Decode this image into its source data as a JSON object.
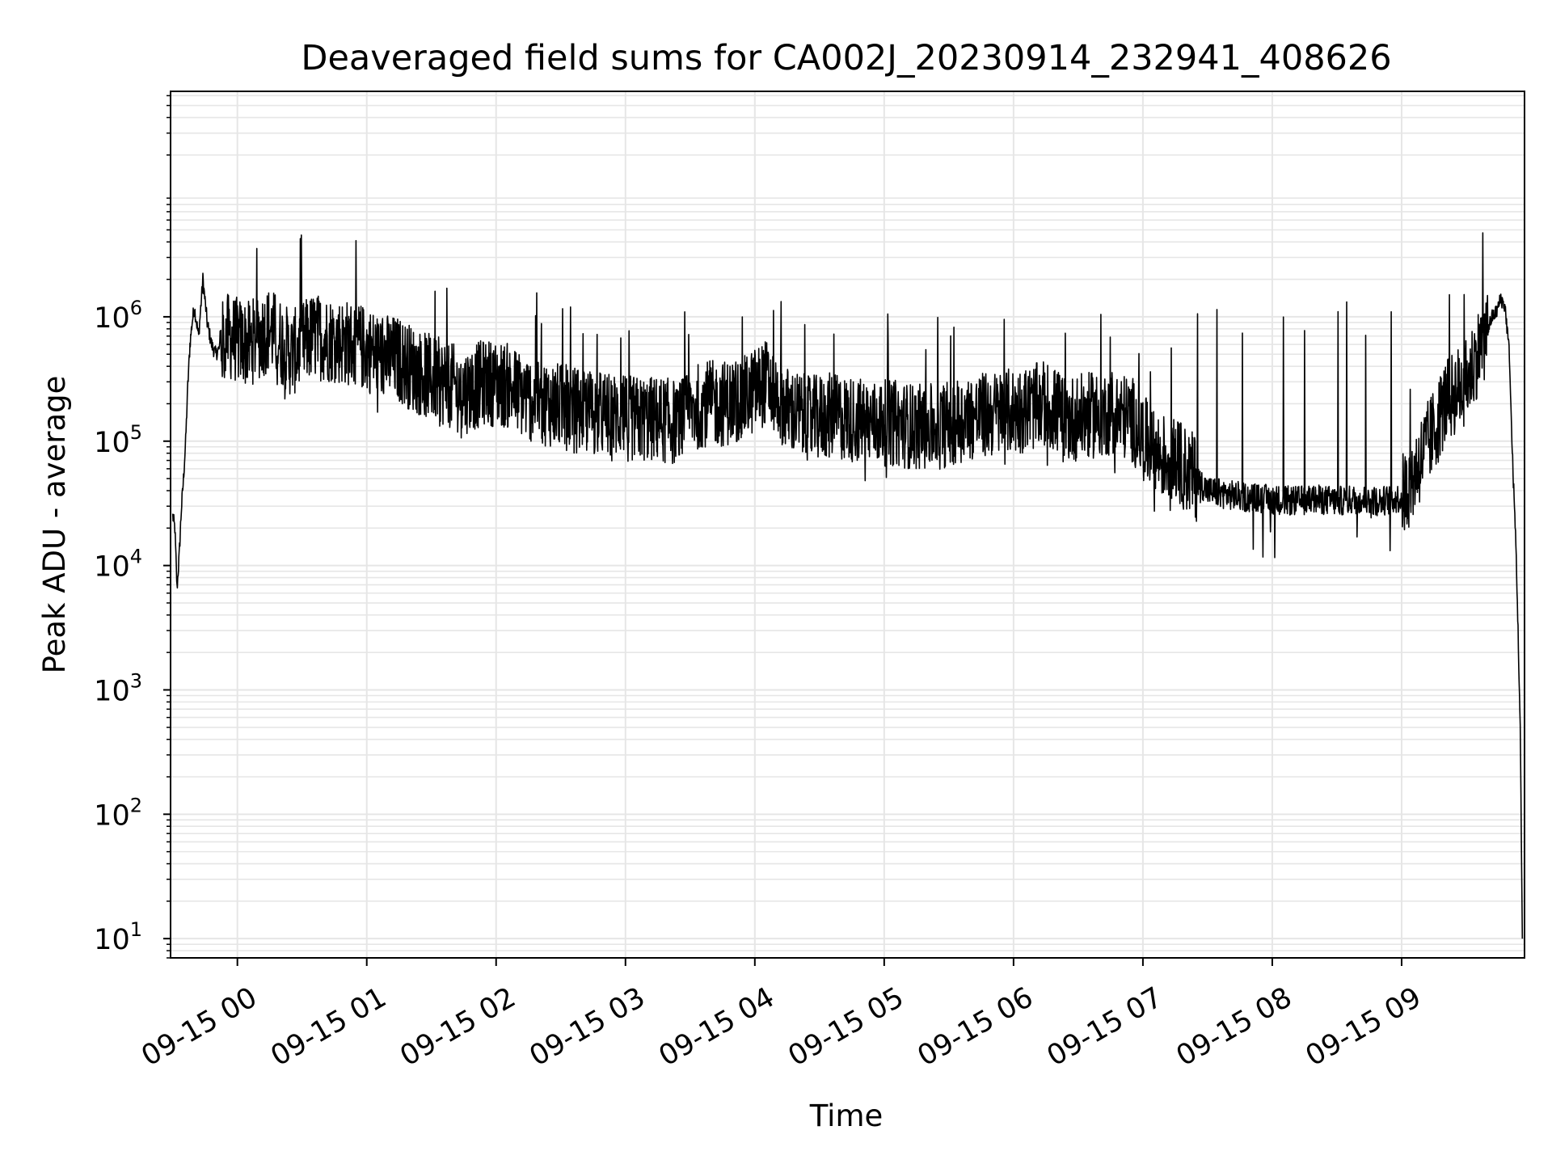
{
  "chart_data": {
    "type": "line",
    "title": "Deaveraged field sums for CA002J_20230914_232941_408626",
    "xlabel": "Time",
    "ylabel": "Peak ADU - average",
    "yscale": "log",
    "grid": true,
    "line_color": "#000000",
    "grid_color": "#e6e6e6",
    "xlim": [
      "2023-09-14 23:29",
      "2023-09-15 09:57"
    ],
    "ylim": [
      7,
      65000000
    ],
    "x_ticks": [
      {
        "value": "2023-09-15 00:00",
        "label": "09-15 00"
      },
      {
        "value": "2023-09-15 01:00",
        "label": "09-15 01"
      },
      {
        "value": "2023-09-15 02:00",
        "label": "09-15 02"
      },
      {
        "value": "2023-09-15 03:00",
        "label": "09-15 03"
      },
      {
        "value": "2023-09-15 04:00",
        "label": "09-15 04"
      },
      {
        "value": "2023-09-15 05:00",
        "label": "09-15 05"
      },
      {
        "value": "2023-09-15 06:00",
        "label": "09-15 06"
      },
      {
        "value": "2023-09-15 07:00",
        "label": "09-15 07"
      },
      {
        "value": "2023-09-15 08:00",
        "label": "09-15 08"
      },
      {
        "value": "2023-09-15 09:00",
        "label": "09-15 09"
      }
    ],
    "y_ticks": [
      {
        "value": 10,
        "base": "10",
        "exp": "1"
      },
      {
        "value": 100,
        "base": "10",
        "exp": "2"
      },
      {
        "value": 1000,
        "base": "10",
        "exp": "3"
      },
      {
        "value": 10000,
        "base": "10",
        "exp": "4"
      },
      {
        "value": 100000,
        "base": "10",
        "exp": "5"
      },
      {
        "value": 1000000,
        "base": "10",
        "exp": "6"
      }
    ],
    "series": [
      {
        "x": [
          "2023-09-14 23:30",
          "2023-09-14 23:31",
          "2023-09-14 23:32",
          "2023-09-14 23:33",
          "2023-09-14 23:34",
          "2023-09-14 23:35",
          "2023-09-14 23:36",
          "2023-09-14 23:37",
          "2023-09-14 23:38",
          "2023-09-14 23:39",
          "2023-09-14 23:40",
          "2023-09-14 23:42",
          "2023-09-14 23:44",
          "2023-09-14 23:46",
          "2023-09-14 23:48",
          "2023-09-14 23:50",
          "2023-09-14 23:55",
          "2023-09-15 00:05",
          "2023-09-15 00:15",
          "2023-09-15 00:25",
          "2023-09-15 00:35",
          "2023-09-15 00:45",
          "2023-09-15 00:55",
          "2023-09-15 01:05",
          "2023-09-15 01:15",
          "2023-09-15 01:25",
          "2023-09-15 01:35",
          "2023-09-15 01:45",
          "2023-09-15 01:55",
          "2023-09-15 02:05",
          "2023-09-15 02:15",
          "2023-09-15 02:25",
          "2023-09-15 02:35",
          "2023-09-15 02:45",
          "2023-09-15 02:55",
          "2023-09-15 03:05",
          "2023-09-15 03:15",
          "2023-09-15 03:25",
          "2023-09-15 03:35",
          "2023-09-15 03:45",
          "2023-09-15 03:55",
          "2023-09-15 04:05",
          "2023-09-15 04:15",
          "2023-09-15 04:25",
          "2023-09-15 04:35",
          "2023-09-15 04:45",
          "2023-09-15 04:55",
          "2023-09-15 05:05",
          "2023-09-15 05:15",
          "2023-09-15 05:25",
          "2023-09-15 05:35",
          "2023-09-15 05:45",
          "2023-09-15 05:55",
          "2023-09-15 06:05",
          "2023-09-15 06:15",
          "2023-09-15 06:25",
          "2023-09-15 06:35",
          "2023-09-15 06:45",
          "2023-09-15 06:55",
          "2023-09-15 07:05",
          "2023-09-15 07:15",
          "2023-09-15 07:25",
          "2023-09-15 07:30",
          "2023-09-15 07:40",
          "2023-09-15 07:50",
          "2023-09-15 08:00",
          "2023-09-15 08:10",
          "2023-09-15 08:20",
          "2023-09-15 08:30",
          "2023-09-15 08:40",
          "2023-09-15 08:50",
          "2023-09-15 09:00",
          "2023-09-15 09:05",
          "2023-09-15 09:10",
          "2023-09-15 09:15",
          "2023-09-15 09:20",
          "2023-09-15 09:25",
          "2023-09-15 09:30",
          "2023-09-15 09:35",
          "2023-09-15 09:40",
          "2023-09-15 09:42",
          "2023-09-15 09:44",
          "2023-09-15 09:46",
          "2023-09-15 09:48",
          "2023-09-15 09:50",
          "2023-09-15 09:51",
          "2023-09-15 09:52",
          "2023-09-15 09:53",
          "2023-09-15 09:54",
          "2023-09-15 09:55",
          "2023-09-15 09:56"
        ],
        "y": [
          25000,
          20000,
          6500,
          12000,
          28000,
          50000,
          100000,
          280000,
          600000,
          900000,
          1200000,
          700000,
          2000000,
          900000,
          600000,
          500000,
          700000,
          600000,
          800000,
          500000,
          700000,
          650000,
          600000,
          500000,
          450000,
          350000,
          300000,
          250000,
          300000,
          280000,
          220000,
          200000,
          180000,
          170000,
          160000,
          150000,
          150000,
          140000,
          200000,
          200000,
          220000,
          300000,
          180000,
          150000,
          160000,
          150000,
          140000,
          140000,
          130000,
          130000,
          150000,
          160000,
          170000,
          180000,
          200000,
          150000,
          160000,
          170000,
          150000,
          80000,
          70000,
          50000,
          40000,
          37000,
          35000,
          34000,
          33000,
          34000,
          33000,
          34000,
          33000,
          35000,
          50000,
          80000,
          120000,
          200000,
          250000,
          300000,
          500000,
          800000,
          1000000,
          1100000,
          1400000,
          1200000,
          500000,
          120000,
          40000,
          15000,
          3000,
          500,
          10
        ]
      }
    ]
  }
}
